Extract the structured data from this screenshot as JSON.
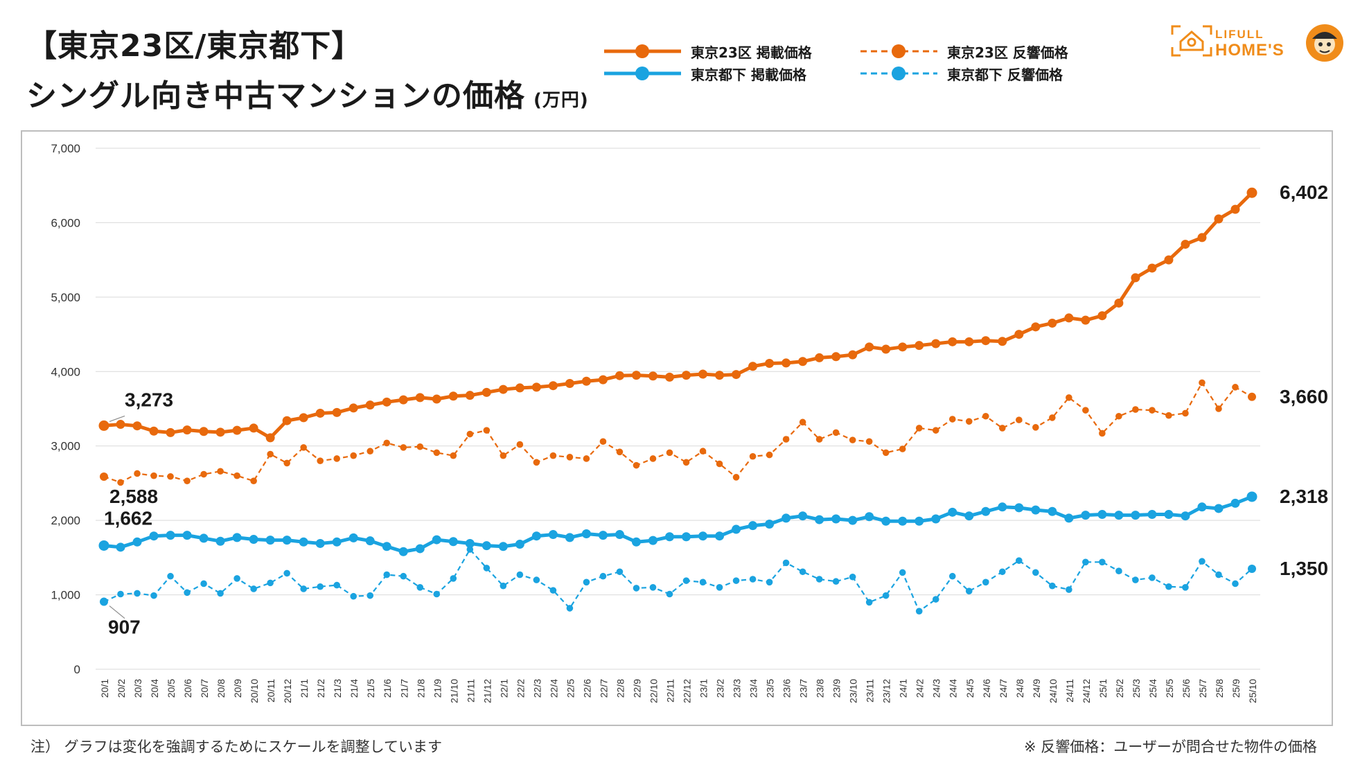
{
  "header": {
    "title_line1": "【東京23区/東京都下】",
    "title_line2": "シングル向き中古マンションの価格",
    "unit": "(万円)"
  },
  "legend": {
    "items": [
      {
        "label": "東京23区 掲載価格",
        "color": "#e8690c",
        "style": "solid"
      },
      {
        "label": "東京都下 掲載価格",
        "color": "#1aa3e0",
        "style": "solid"
      },
      {
        "label": "東京23区 反響価格",
        "color": "#e8690c",
        "style": "dashed"
      },
      {
        "label": "東京都下 反響価格",
        "color": "#1aa3e0",
        "style": "dashed"
      }
    ]
  },
  "logo": {
    "line1": "LIFULL",
    "line2": "HOME'S",
    "color": "#f08c1a"
  },
  "footer": {
    "note_left": "注） グラフは変化を強調するためにスケールを調整しています",
    "note_right": "※ 反響価格：ユーザーが問合せた物件の価格"
  },
  "chart_data": {
    "type": "line",
    "title": "シングル向き中古マンションの価格",
    "ylabel": "万円",
    "ylim": [
      0,
      7000
    ],
    "yticks": [
      0,
      1000,
      2000,
      3000,
      4000,
      5000,
      6000,
      7000
    ],
    "ytick_labels": [
      "0",
      "1,000",
      "2,000",
      "3,000",
      "4,000",
      "5,000",
      "6,000",
      "7,000"
    ],
    "grid": true,
    "categories": [
      "20/1",
      "20/2",
      "20/3",
      "20/4",
      "20/5",
      "20/6",
      "20/7",
      "20/8",
      "20/9",
      "20/10",
      "20/11",
      "20/12",
      "21/1",
      "21/2",
      "21/3",
      "21/4",
      "21/5",
      "21/6",
      "21/7",
      "21/8",
      "21/9",
      "21/10",
      "21/11",
      "21/12",
      "22/1",
      "22/2",
      "22/3",
      "22/4",
      "22/5",
      "22/6",
      "22/7",
      "22/8",
      "22/9",
      "22/10",
      "22/11",
      "22/12",
      "23/1",
      "23/2",
      "23/3",
      "23/4",
      "23/5",
      "23/6",
      "23/7",
      "23/8",
      "23/9",
      "23/10",
      "23/11",
      "23/12",
      "24/1",
      "24/2",
      "24/3",
      "24/4",
      "24/5",
      "24/6",
      "24/7",
      "24/8",
      "24/9",
      "24/10",
      "24/11",
      "24/12",
      "25/1",
      "25/2",
      "25/3",
      "25/4",
      "25/5",
      "25/6",
      "25/7",
      "25/8",
      "25/9",
      "25/10"
    ],
    "series": [
      {
        "name": "東京23区 掲載価格",
        "color": "#e8690c",
        "style": "solid",
        "values": [
          3273,
          3290,
          3270,
          3200,
          3180,
          3215,
          3195,
          3185,
          3210,
          3240,
          3110,
          3340,
          3380,
          3440,
          3450,
          3510,
          3550,
          3590,
          3620,
          3650,
          3630,
          3670,
          3680,
          3720,
          3760,
          3780,
          3790,
          3810,
          3840,
          3870,
          3890,
          3945,
          3950,
          3940,
          3925,
          3950,
          3965,
          3950,
          3960,
          4070,
          4110,
          4115,
          4135,
          4185,
          4200,
          4225,
          4330,
          4300,
          4330,
          4350,
          4375,
          4400,
          4400,
          4415,
          4405,
          4500,
          4600,
          4650,
          4720,
          4690,
          4750,
          4920,
          5260,
          5390,
          5500,
          5710,
          5800,
          6050,
          6180,
          6402
        ],
        "first_label": "3,273",
        "last_label": "6,402"
      },
      {
        "name": "東京23区 反響価格",
        "color": "#e8690c",
        "style": "dashed",
        "values": [
          2588,
          2510,
          2630,
          2600,
          2590,
          2530,
          2620,
          2660,
          2600,
          2530,
          2890,
          2770,
          2980,
          2800,
          2830,
          2870,
          2930,
          3040,
          2980,
          2990,
          2910,
          2870,
          3160,
          3210,
          2870,
          3020,
          2780,
          2870,
          2850,
          2830,
          3060,
          2920,
          2740,
          2830,
          2910,
          2780,
          2930,
          2760,
          2580,
          2860,
          2880,
          3090,
          3320,
          3090,
          3180,
          3080,
          3060,
          2910,
          2960,
          3240,
          3210,
          3360,
          3330,
          3400,
          3240,
          3350,
          3250,
          3380,
          3650,
          3480,
          3170,
          3400,
          3490,
          3480,
          3410,
          3440,
          3850,
          3500,
          3790,
          3660
        ],
        "first_label": "2,588",
        "last_label": "3,660"
      },
      {
        "name": "東京都下 掲載価格",
        "color": "#1aa3e0",
        "style": "solid",
        "values": [
          1662,
          1640,
          1710,
          1790,
          1800,
          1800,
          1760,
          1720,
          1770,
          1745,
          1735,
          1735,
          1710,
          1690,
          1710,
          1765,
          1725,
          1650,
          1580,
          1620,
          1740,
          1715,
          1690,
          1660,
          1650,
          1680,
          1790,
          1810,
          1770,
          1820,
          1800,
          1810,
          1710,
          1730,
          1780,
          1780,
          1790,
          1790,
          1880,
          1930,
          1950,
          2030,
          2060,
          2010,
          2020,
          2000,
          2050,
          1990,
          1990,
          1990,
          2020,
          2110,
          2060,
          2120,
          2180,
          2170,
          2140,
          2120,
          2030,
          2070,
          2080,
          2070,
          2070,
          2080,
          2080,
          2060,
          2180,
          2160,
          2230,
          2318
        ],
        "first_label": "1,662",
        "last_label": "2,318"
      },
      {
        "name": "東京都下 反響価格",
        "color": "#1aa3e0",
        "style": "dashed",
        "values": [
          907,
          1010,
          1020,
          990,
          1250,
          1030,
          1150,
          1020,
          1220,
          1080,
          1160,
          1290,
          1080,
          1110,
          1130,
          980,
          990,
          1270,
          1250,
          1100,
          1010,
          1220,
          1610,
          1360,
          1120,
          1270,
          1200,
          1060,
          820,
          1170,
          1250,
          1310,
          1090,
          1100,
          1010,
          1190,
          1170,
          1100,
          1190,
          1210,
          1170,
          1430,
          1310,
          1210,
          1180,
          1240,
          900,
          990,
          1300,
          780,
          940,
          1250,
          1050,
          1170,
          1310,
          1460,
          1300,
          1120,
          1070,
          1440,
          1440,
          1320,
          1200,
          1230,
          1110,
          1100,
          1450,
          1270,
          1150,
          1350
        ],
        "first_label": "907",
        "last_label": "1,350"
      }
    ]
  }
}
